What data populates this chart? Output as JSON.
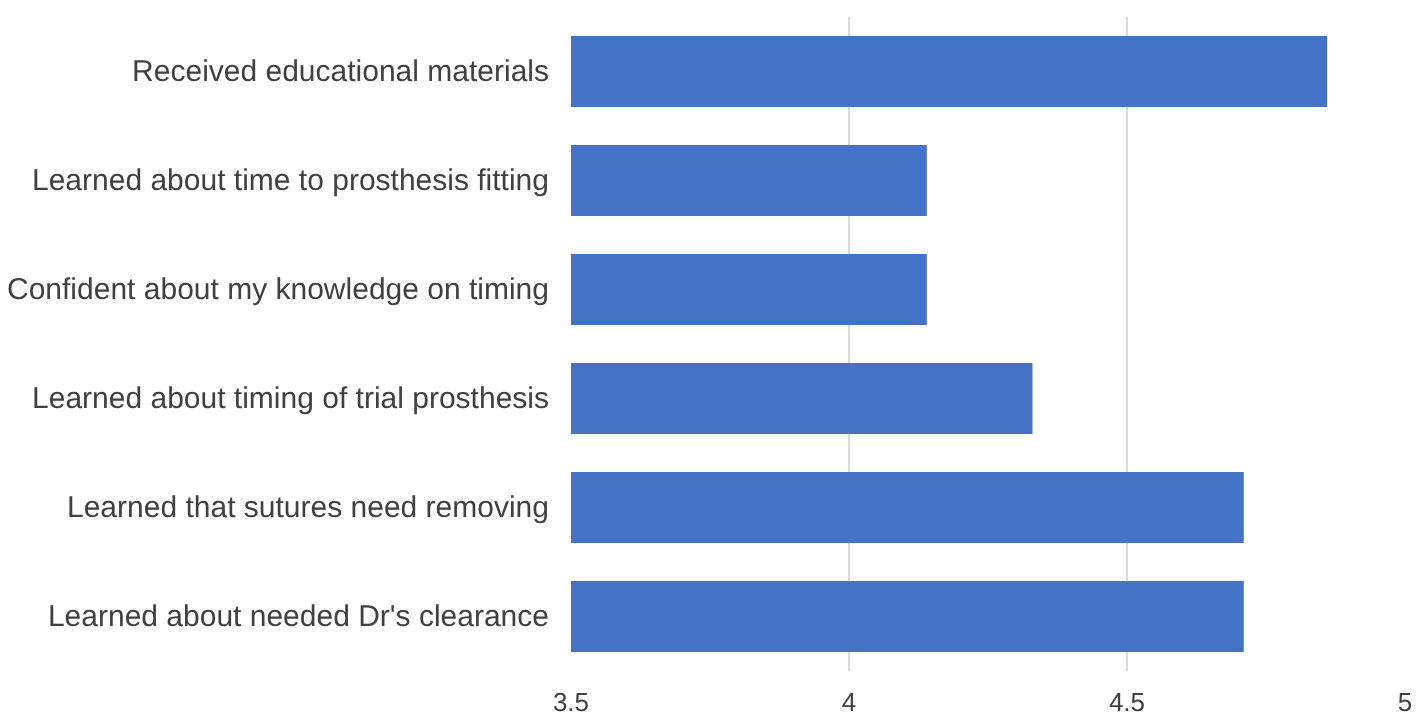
{
  "chart_data": {
    "type": "bar",
    "orientation": "horizontal",
    "categories": [
      "Received educational materials",
      "Learned about time to prosthesis fitting",
      "Confident about my knowledge on timing",
      "Learned about timing of trial prosthesis",
      "Learned that sutures need removing",
      "Learned about needed Dr's clearance"
    ],
    "values": [
      4.86,
      4.14,
      4.14,
      4.33,
      4.71,
      4.71
    ],
    "color": "#4472c4",
    "xlim": [
      3.5,
      5
    ],
    "xticks": [
      3.5,
      4,
      {
        "value": 4.5,
        "label": "4.5"
      },
      5
    ],
    "grid": "x"
  }
}
